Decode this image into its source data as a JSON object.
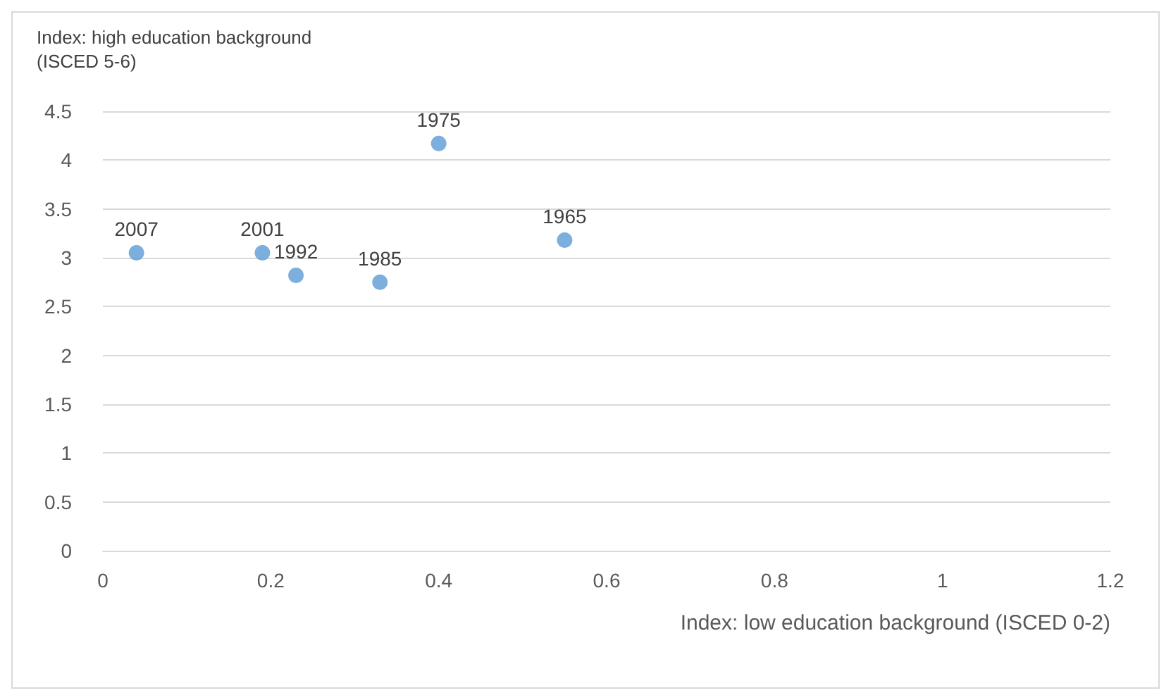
{
  "chart_data": {
    "type": "scatter",
    "xlabel": "Index: low education background (ISCED 0-2)",
    "ylabel": "Index: high education background\n(ISCED 5-6)",
    "x": [
      0.04,
      0.19,
      0.23,
      0.33,
      0.4,
      0.55
    ],
    "values": [
      3.05,
      3.05,
      2.82,
      2.75,
      4.17,
      3.18
    ],
    "annotations": [
      {
        "text": "2007",
        "x": 0.04,
        "y": 3.05
      },
      {
        "text": "2001",
        "x": 0.19,
        "y": 3.05
      },
      {
        "text": "1992",
        "x": 0.23,
        "y": 2.82
      },
      {
        "text": "1985",
        "x": 0.33,
        "y": 2.75
      },
      {
        "text": "1975",
        "x": 0.4,
        "y": 4.17
      },
      {
        "text": "1965",
        "x": 0.55,
        "y": 3.18
      }
    ],
    "color": "#5b9bd5",
    "marker": "circle",
    "xlim": [
      0,
      1.2
    ],
    "xticks": [
      0,
      0.2,
      0.4,
      0.6,
      0.8,
      1,
      1.2
    ],
    "ylim": [
      0,
      4.5
    ],
    "yticks": [
      0,
      0.5,
      1,
      1.5,
      2,
      2.5,
      3,
      3.5,
      4,
      4.5
    ],
    "grid": "y"
  }
}
